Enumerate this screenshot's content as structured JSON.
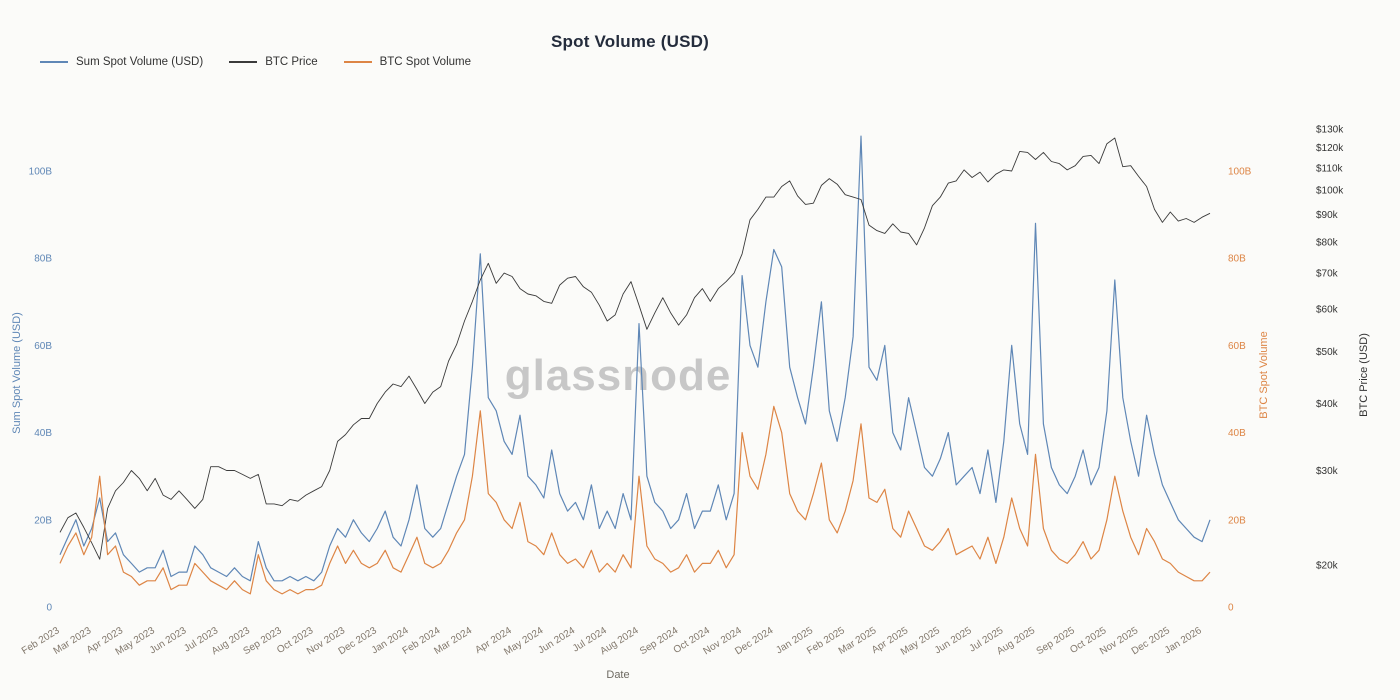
{
  "chart": {
    "title": "Spot Volume (USD)",
    "watermark": "glassnode",
    "background": "#fbfbf9"
  },
  "chart_data": {
    "type": "line",
    "title": "Spot Volume (USD)",
    "xlabel": "Date",
    "x_unit": "weekly samples",
    "x_range": [
      "Feb 2023",
      "Jan 2026"
    ],
    "grid": false,
    "legend_position": "top-left",
    "x_tick_labels": [
      "Feb 2023",
      "Mar 2023",
      "Apr 2023",
      "May 2023",
      "Jun 2023",
      "Jul 2023",
      "Aug 2023",
      "Sep 2023",
      "Oct 2023",
      "Nov 2023",
      "Dec 2023",
      "Jan 2024",
      "Feb 2024",
      "Mar 2024",
      "Apr 2024",
      "May 2024",
      "Jun 2024",
      "Jul 2024",
      "Aug 2024",
      "Sep 2024",
      "Oct 2024",
      "Nov 2024",
      "Dec 2024",
      "Jan 2025",
      "Feb 2025",
      "Mar 2025",
      "Apr 2025",
      "May 2025",
      "Jun 2025",
      "Jul 2025",
      "Aug 2025",
      "Sep 2025",
      "Oct 2025",
      "Nov 2025",
      "Dec 2025",
      "Jan 2026"
    ],
    "samples_per_month": [
      4,
      4,
      4,
      4,
      4,
      4,
      4,
      4,
      4,
      4,
      4,
      4,
      4,
      5,
      4,
      4,
      4,
      4,
      5,
      4,
      4,
      4,
      5,
      4,
      4,
      4,
      4,
      4,
      4,
      4,
      5,
      4,
      4,
      4,
      4,
      2
    ],
    "axes": {
      "left_volume": {
        "title": "Sum Spot Volume (USD)",
        "color": "#5f87b6",
        "tick_labels": [
          "0",
          "20B",
          "40B",
          "60B",
          "80B",
          "100B"
        ],
        "tick_values_billions": [
          0,
          20,
          40,
          60,
          80,
          100
        ],
        "range_billions": [
          0,
          112
        ]
      },
      "right_volume": {
        "title": "BTC Spot Volume",
        "color": "#dd8545",
        "tick_labels": [
          "0",
          "20B",
          "40B",
          "60B",
          "80B",
          "100B"
        ],
        "tick_values_billions": [
          0,
          20,
          40,
          60,
          80,
          100
        ]
      },
      "right_price": {
        "title": "BTC Price (USD)",
        "color": "#333333",
        "scale": "log",
        "tick_labels": [
          "$20k",
          "$30k",
          "$40k",
          "$50k",
          "$60k",
          "$70k",
          "$80k",
          "$90k",
          "$100k",
          "$110k",
          "$120k",
          "$130k"
        ],
        "tick_values_k": [
          20,
          30,
          40,
          50,
          60,
          70,
          80,
          90,
          100,
          110,
          120,
          130
        ]
      }
    },
    "series": [
      {
        "name": "Sum Spot Volume (USD)",
        "color": "#5f87b6",
        "axis": "left_volume",
        "unit": "USD billions",
        "values": [
          12,
          16,
          20,
          14,
          18,
          25,
          15,
          17,
          12,
          10,
          8,
          9,
          9,
          13,
          7,
          8,
          8,
          14,
          12,
          9,
          8,
          7,
          9,
          7,
          6,
          15,
          9,
          6,
          6,
          7,
          6,
          7,
          6,
          8,
          14,
          18,
          16,
          20,
          17,
          15,
          18,
          22,
          16,
          14,
          20,
          28,
          18,
          16,
          18,
          24,
          30,
          35,
          55,
          81,
          48,
          45,
          38,
          35,
          44,
          30,
          28,
          25,
          36,
          26,
          22,
          24,
          20,
          28,
          18,
          22,
          18,
          26,
          20,
          65,
          30,
          24,
          22,
          18,
          20,
          26,
          18,
          22,
          22,
          28,
          20,
          26,
          76,
          60,
          55,
          70,
          82,
          78,
          55,
          48,
          42,
          55,
          70,
          45,
          38,
          48,
          62,
          108,
          55,
          52,
          60,
          40,
          36,
          48,
          40,
          32,
          30,
          34,
          40,
          28,
          30,
          32,
          26,
          36,
          24,
          38,
          60,
          42,
          35,
          88,
          42,
          32,
          28,
          26,
          30,
          36,
          28,
          32,
          45,
          75,
          48,
          38,
          30,
          44,
          35,
          28,
          24,
          20,
          18,
          16,
          15,
          20
        ]
      },
      {
        "name": "BTC Price",
        "color": "#3b3b3b",
        "axis": "right_price",
        "unit": "USD thousands",
        "values": [
          23,
          24.5,
          25,
          23.5,
          22,
          20.5,
          25.5,
          27.5,
          28.5,
          30,
          29,
          27.5,
          29,
          27,
          26.5,
          27.5,
          26.5,
          25.5,
          26.5,
          30.5,
          30.5,
          30,
          30,
          29.5,
          29,
          29.5,
          26,
          26,
          25.8,
          26.5,
          26.3,
          27,
          27.5,
          28,
          30,
          34,
          35,
          36.5,
          37.5,
          37.5,
          40,
          42,
          43.5,
          43,
          45,
          42.5,
          40,
          42,
          43,
          48,
          51.5,
          57,
          62,
          68,
          73,
          67,
          70,
          69,
          65.5,
          64,
          63.5,
          62,
          61.5,
          66.5,
          68.5,
          69,
          66,
          64.5,
          61,
          57,
          58.5,
          64,
          67.5,
          61,
          55,
          59,
          63,
          59,
          56,
          58.5,
          63,
          65.5,
          62,
          65.5,
          67.5,
          70,
          76,
          88,
          92,
          97,
          97,
          101.5,
          104,
          97.5,
          94,
          94.5,
          102,
          105,
          102.5,
          98,
          97,
          96,
          86,
          84,
          83,
          86.5,
          83.5,
          83,
          79,
          85,
          93.5,
          97,
          103,
          104,
          109,
          105.5,
          108,
          103.5,
          107,
          109,
          108.5,
          118,
          117.5,
          114,
          117.5,
          113,
          112,
          109,
          111,
          115.5,
          116,
          112,
          122,
          125,
          110.5,
          111,
          106,
          101.5,
          92,
          87,
          91,
          87.5,
          88.5,
          87,
          89,
          90.5
        ]
      },
      {
        "name": "BTC Spot Volume",
        "color": "#dd8545",
        "axis": "right_volume",
        "unit": "USD billions",
        "values": [
          10,
          14,
          17,
          12,
          16,
          30,
          12,
          14,
          8,
          7,
          5,
          6,
          6,
          9,
          4,
          5,
          5,
          10,
          8,
          6,
          5,
          4,
          6,
          4,
          3,
          12,
          6,
          4,
          3,
          4,
          3,
          4,
          4,
          5,
          10,
          14,
          10,
          13,
          10,
          9,
          10,
          13,
          9,
          8,
          12,
          16,
          10,
          9,
          10,
          13,
          17,
          20,
          30,
          45,
          26,
          24,
          20,
          18,
          24,
          15,
          14,
          12,
          17,
          12,
          10,
          11,
          9,
          13,
          8,
          10,
          8,
          12,
          9,
          30,
          14,
          11,
          10,
          8,
          9,
          12,
          8,
          10,
          10,
          13,
          9,
          12,
          40,
          30,
          27,
          35,
          46,
          40,
          26,
          22,
          20,
          26,
          33,
          20,
          17,
          22,
          29,
          42,
          25,
          24,
          27,
          18,
          16,
          22,
          18,
          14,
          13,
          15,
          18,
          12,
          13,
          14,
          11,
          16,
          10,
          16,
          25,
          18,
          14,
          35,
          18,
          13,
          11,
          10,
          12,
          15,
          11,
          13,
          20,
          30,
          22,
          16,
          12,
          18,
          15,
          11,
          10,
          8,
          7,
          6,
          6,
          8
        ]
      }
    ]
  }
}
